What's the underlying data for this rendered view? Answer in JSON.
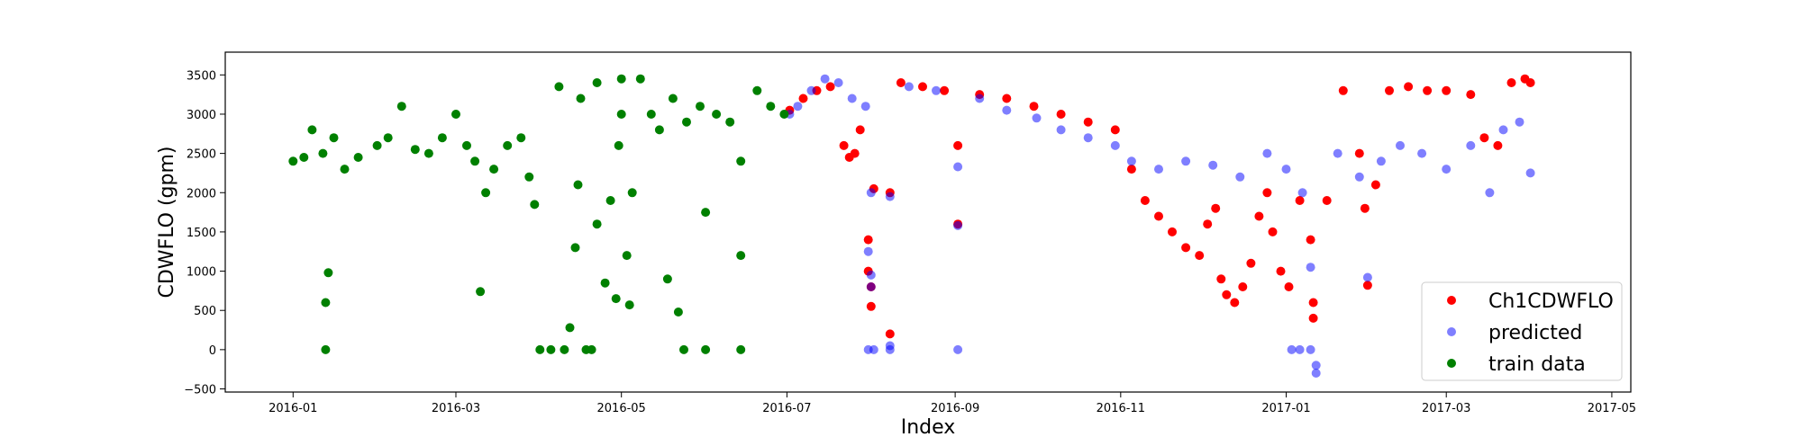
{
  "chart_data": {
    "type": "scatter",
    "title": "",
    "xlabel": "Index",
    "ylabel": "CDWFLO (gpm)",
    "x_axis_type": "date",
    "xlim": [
      "2015-12-07",
      "2017-05-08"
    ],
    "ylim": [
      -540,
      3790
    ],
    "x_ticks": [
      {
        "date": "2016-01-01",
        "label": "2016-01"
      },
      {
        "date": "2016-03-01",
        "label": "2016-03"
      },
      {
        "date": "2016-05-01",
        "label": "2016-05"
      },
      {
        "date": "2016-07-01",
        "label": "2016-07"
      },
      {
        "date": "2016-09-01",
        "label": "2016-09"
      },
      {
        "date": "2016-11-01",
        "label": "2016-11"
      },
      {
        "date": "2017-01-01",
        "label": "2017-01"
      },
      {
        "date": "2017-03-01",
        "label": "2017-03"
      },
      {
        "date": "2017-05-01",
        "label": "2017-05"
      }
    ],
    "y_ticks": [
      -500,
      0,
      500,
      1000,
      1500,
      2000,
      2500,
      3000,
      3500
    ],
    "grid": false,
    "legend_position": "lower-right",
    "series": [
      {
        "name": "Ch1CDWFLO",
        "color": "#ff0000",
        "opacity": 1.0,
        "points": [
          [
            "2016-07-02",
            3050
          ],
          [
            "2016-07-07",
            3200
          ],
          [
            "2016-07-12",
            3300
          ],
          [
            "2016-07-17",
            3350
          ],
          [
            "2016-07-22",
            2600
          ],
          [
            "2016-07-24",
            2450
          ],
          [
            "2016-07-26",
            2500
          ],
          [
            "2016-07-28",
            2800
          ],
          [
            "2016-07-31",
            1400
          ],
          [
            "2016-07-31",
            1000
          ],
          [
            "2016-08-01",
            800
          ],
          [
            "2016-08-01",
            550
          ],
          [
            "2016-08-02",
            2050
          ],
          [
            "2016-08-08",
            2000
          ],
          [
            "2016-08-08",
            200
          ],
          [
            "2016-08-12",
            3400
          ],
          [
            "2016-08-20",
            3350
          ],
          [
            "2016-08-28",
            3300
          ],
          [
            "2016-09-02",
            1600
          ],
          [
            "2016-09-02",
            2600
          ],
          [
            "2016-09-10",
            3250
          ],
          [
            "2016-09-20",
            3200
          ],
          [
            "2016-09-30",
            3100
          ],
          [
            "2016-10-10",
            3000
          ],
          [
            "2016-10-20",
            2900
          ],
          [
            "2016-10-30",
            2800
          ],
          [
            "2016-11-05",
            2300
          ],
          [
            "2016-11-10",
            1900
          ],
          [
            "2016-11-15",
            1700
          ],
          [
            "2016-11-20",
            1500
          ],
          [
            "2016-11-25",
            1300
          ],
          [
            "2016-11-30",
            1200
          ],
          [
            "2016-12-03",
            1600
          ],
          [
            "2016-12-06",
            1800
          ],
          [
            "2016-12-08",
            900
          ],
          [
            "2016-12-10",
            700
          ],
          [
            "2016-12-13",
            600
          ],
          [
            "2016-12-16",
            800
          ],
          [
            "2016-12-19",
            1100
          ],
          [
            "2016-12-22",
            1700
          ],
          [
            "2016-12-25",
            2000
          ],
          [
            "2016-12-27",
            1500
          ],
          [
            "2016-12-30",
            1000
          ],
          [
            "2017-01-02",
            800
          ],
          [
            "2017-01-06",
            1900
          ],
          [
            "2017-01-10",
            1400
          ],
          [
            "2017-01-11",
            600
          ],
          [
            "2017-01-11",
            400
          ],
          [
            "2017-01-16",
            1900
          ],
          [
            "2017-01-22",
            3300
          ],
          [
            "2017-01-28",
            2500
          ],
          [
            "2017-01-30",
            1800
          ],
          [
            "2017-02-03",
            2100
          ],
          [
            "2017-02-08",
            3300
          ],
          [
            "2017-02-15",
            3350
          ],
          [
            "2017-02-22",
            3300
          ],
          [
            "2017-03-01",
            3300
          ],
          [
            "2017-03-10",
            3250
          ],
          [
            "2017-03-15",
            2700
          ],
          [
            "2017-03-20",
            2600
          ],
          [
            "2017-03-25",
            3400
          ],
          [
            "2017-03-30",
            3450
          ],
          [
            "2017-04-01",
            3400
          ],
          [
            "2017-01-31",
            820
          ]
        ]
      },
      {
        "name": "predicted",
        "color": "#0000ff",
        "opacity": 0.5,
        "points": [
          [
            "2016-07-02",
            3000
          ],
          [
            "2016-07-05",
            3100
          ],
          [
            "2016-07-10",
            3300
          ],
          [
            "2016-07-15",
            3450
          ],
          [
            "2016-07-20",
            3400
          ],
          [
            "2016-07-25",
            3200
          ],
          [
            "2016-07-30",
            3100
          ],
          [
            "2016-07-31",
            0
          ],
          [
            "2016-08-02",
            0
          ],
          [
            "2016-07-31",
            1250
          ],
          [
            "2016-08-01",
            950
          ],
          [
            "2016-08-01",
            800
          ],
          [
            "2016-08-01",
            2000
          ],
          [
            "2016-08-08",
            1950
          ],
          [
            "2016-08-08",
            0
          ],
          [
            "2016-08-08",
            50
          ],
          [
            "2016-08-15",
            3350
          ],
          [
            "2016-08-25",
            3300
          ],
          [
            "2016-09-02",
            0
          ],
          [
            "2016-09-02",
            2330
          ],
          [
            "2016-09-02",
            1580
          ],
          [
            "2016-09-10",
            3200
          ],
          [
            "2016-09-20",
            3050
          ],
          [
            "2016-10-01",
            2950
          ],
          [
            "2016-10-10",
            2800
          ],
          [
            "2016-10-20",
            2700
          ],
          [
            "2016-10-30",
            2600
          ],
          [
            "2016-11-05",
            2400
          ],
          [
            "2016-11-15",
            2300
          ],
          [
            "2016-11-25",
            2400
          ],
          [
            "2016-12-05",
            2350
          ],
          [
            "2016-12-15",
            2200
          ],
          [
            "2016-12-25",
            2500
          ],
          [
            "2017-01-01",
            2300
          ],
          [
            "2017-01-03",
            0
          ],
          [
            "2017-01-06",
            0
          ],
          [
            "2017-01-10",
            0
          ],
          [
            "2017-01-12",
            -200
          ],
          [
            "2017-01-12",
            -300
          ],
          [
            "2017-01-07",
            2000
          ],
          [
            "2017-01-10",
            1050
          ],
          [
            "2017-01-31",
            920
          ],
          [
            "2017-01-20",
            2500
          ],
          [
            "2017-01-28",
            2200
          ],
          [
            "2017-02-05",
            2400
          ],
          [
            "2017-02-12",
            2600
          ],
          [
            "2017-02-20",
            2500
          ],
          [
            "2017-03-01",
            2300
          ],
          [
            "2017-03-10",
            2600
          ],
          [
            "2017-03-17",
            2000
          ],
          [
            "2017-03-22",
            2800
          ],
          [
            "2017-03-28",
            2900
          ],
          [
            "2017-04-01",
            2250
          ]
        ]
      },
      {
        "name": "train data",
        "color": "#008000",
        "opacity": 1.0,
        "points": [
          [
            "2016-01-01",
            2400
          ],
          [
            "2016-01-05",
            2450
          ],
          [
            "2016-01-08",
            2800
          ],
          [
            "2016-01-12",
            2500
          ],
          [
            "2016-01-13",
            600
          ],
          [
            "2016-01-14",
            980
          ],
          [
            "2016-01-13",
            0
          ],
          [
            "2016-01-16",
            2700
          ],
          [
            "2016-01-20",
            2300
          ],
          [
            "2016-01-25",
            2450
          ],
          [
            "2016-02-01",
            2600
          ],
          [
            "2016-02-05",
            2700
          ],
          [
            "2016-02-10",
            3100
          ],
          [
            "2016-02-15",
            2550
          ],
          [
            "2016-02-20",
            2500
          ],
          [
            "2016-02-25",
            2700
          ],
          [
            "2016-03-01",
            3000
          ],
          [
            "2016-03-05",
            2600
          ],
          [
            "2016-03-08",
            2400
          ],
          [
            "2016-03-10",
            740
          ],
          [
            "2016-03-12",
            2000
          ],
          [
            "2016-03-15",
            2300
          ],
          [
            "2016-03-20",
            2600
          ],
          [
            "2016-03-25",
            2700
          ],
          [
            "2016-03-28",
            2200
          ],
          [
            "2016-03-30",
            1850
          ],
          [
            "2016-04-01",
            0
          ],
          [
            "2016-04-05",
            0
          ],
          [
            "2016-04-10",
            0
          ],
          [
            "2016-04-15",
            2100
          ],
          [
            "2016-04-08",
            3350
          ],
          [
            "2016-04-12",
            280
          ],
          [
            "2016-04-14",
            1300
          ],
          [
            "2016-04-16",
            3200
          ],
          [
            "2016-04-18",
            0
          ],
          [
            "2016-04-20",
            0
          ],
          [
            "2016-04-22",
            1600
          ],
          [
            "2016-04-22",
            3400
          ],
          [
            "2016-04-25",
            850
          ],
          [
            "2016-04-27",
            1900
          ],
          [
            "2016-04-29",
            650
          ],
          [
            "2016-04-30",
            2600
          ],
          [
            "2016-05-01",
            3000
          ],
          [
            "2016-05-01",
            3450
          ],
          [
            "2016-05-03",
            1200
          ],
          [
            "2016-05-04",
            570
          ],
          [
            "2016-05-05",
            2000
          ],
          [
            "2016-05-08",
            3450
          ],
          [
            "2016-05-12",
            3000
          ],
          [
            "2016-05-15",
            2800
          ],
          [
            "2016-05-18",
            900
          ],
          [
            "2016-05-20",
            3200
          ],
          [
            "2016-05-22",
            480
          ],
          [
            "2016-05-24",
            0
          ],
          [
            "2016-05-25",
            2900
          ],
          [
            "2016-05-30",
            3100
          ],
          [
            "2016-06-01",
            0
          ],
          [
            "2016-06-01",
            1750
          ],
          [
            "2016-06-05",
            3000
          ],
          [
            "2016-06-10",
            2900
          ],
          [
            "2016-06-14",
            0
          ],
          [
            "2016-06-14",
            1200
          ],
          [
            "2016-06-14",
            2400
          ],
          [
            "2016-06-20",
            3300
          ],
          [
            "2016-06-25",
            3100
          ],
          [
            "2016-06-30",
            3000
          ]
        ]
      }
    ]
  }
}
